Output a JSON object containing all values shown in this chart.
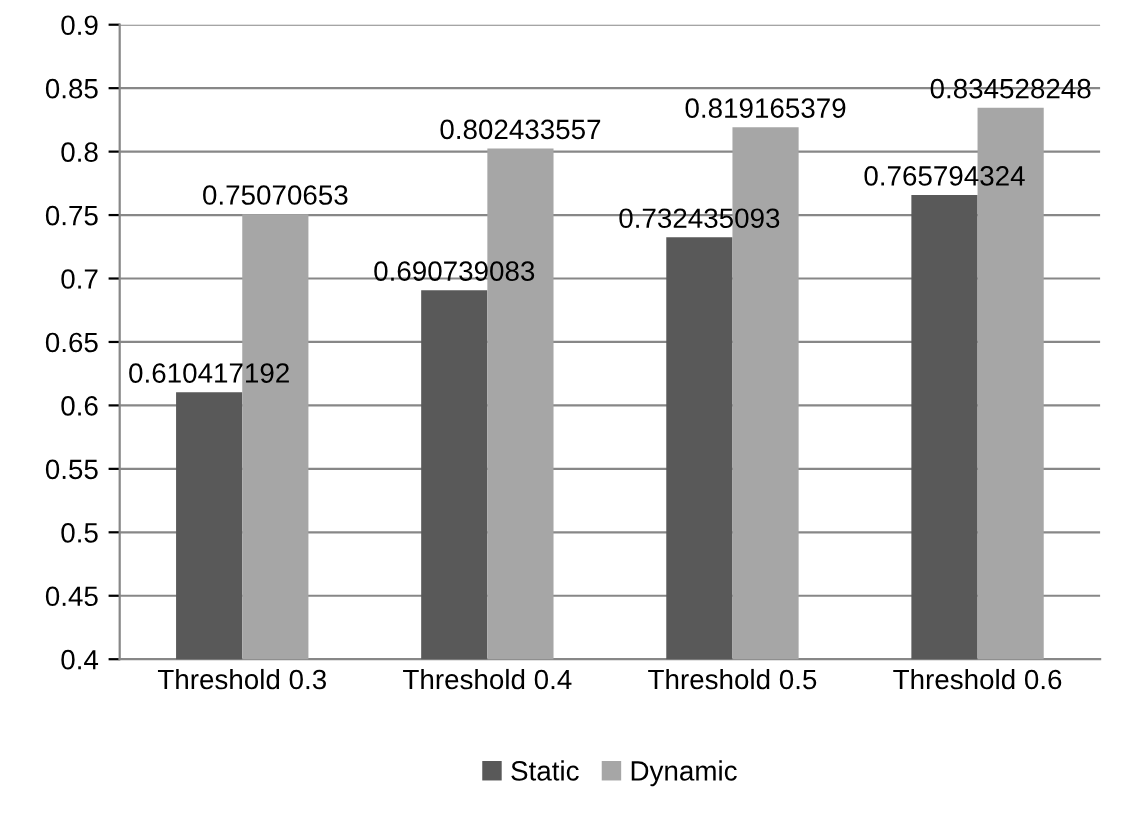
{
  "chart_data": {
    "type": "bar",
    "categories": [
      "Threshold 0.3",
      "Threshold 0.4",
      "Threshold 0.5",
      "Threshold 0.6"
    ],
    "series": [
      {
        "name": "Static",
        "color": "#595959",
        "values": [
          0.610417192,
          0.690739083,
          0.732435093,
          0.765794324
        ]
      },
      {
        "name": "Dynamic",
        "color": "#a6a6a6",
        "values": [
          0.75070653,
          0.802433557,
          0.819165379,
          0.834528248
        ]
      }
    ],
    "ylim": [
      0.4,
      0.9
    ],
    "yticks": [
      0.4,
      0.45,
      0.5,
      0.55,
      0.6,
      0.65,
      0.7,
      0.75,
      0.8,
      0.85,
      0.9
    ],
    "grid": "y",
    "legend": "bottom",
    "data_labels": true
  }
}
